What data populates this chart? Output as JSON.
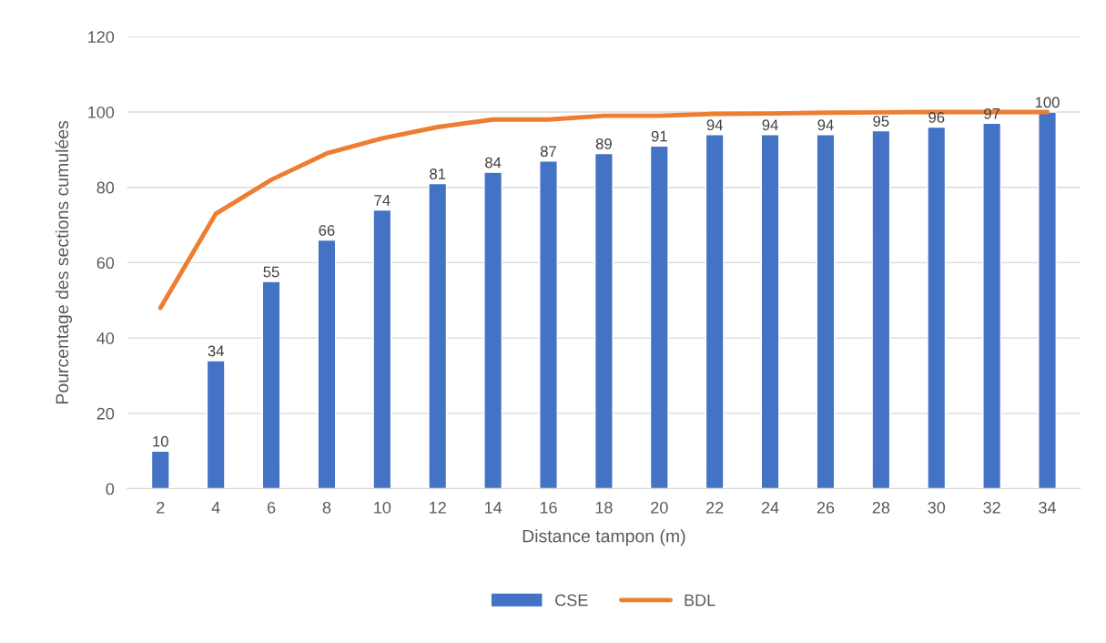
{
  "chart_data": {
    "type": "bar",
    "xlabel": "Distance tampon (m)",
    "ylabel": "Pourcentage des sections cumulées",
    "categories": [
      "2",
      "4",
      "6",
      "8",
      "10",
      "12",
      "14",
      "16",
      "18",
      "20",
      "22",
      "24",
      "26",
      "28",
      "30",
      "32",
      "34"
    ],
    "series": [
      {
        "name": "CSE",
        "color": "#4472c4",
        "values": [
          10,
          34,
          55,
          66,
          74,
          81,
          84,
          87,
          89,
          91,
          94,
          94,
          94,
          95,
          96,
          97,
          100
        ],
        "value_labels": [
          "10",
          "34",
          "55",
          "66",
          "74",
          "81",
          "84",
          "87",
          "89",
          "91",
          "94",
          "94",
          "94",
          "95",
          "96",
          "97",
          "100"
        ]
      },
      {
        "name": "BDL",
        "type": "line",
        "color": "#ed7d31",
        "values": [
          48,
          73,
          82,
          89,
          93,
          96,
          98,
          98,
          99,
          99,
          99.5,
          99.6,
          99.8,
          99.9,
          100,
          100,
          100
        ]
      }
    ],
    "ylim": [
      0,
      120
    ],
    "yticks": [
      0,
      20,
      40,
      60,
      80,
      100,
      120
    ],
    "grid": "y",
    "legend": "bottom",
    "marker": "none",
    "line_style": "solid"
  }
}
